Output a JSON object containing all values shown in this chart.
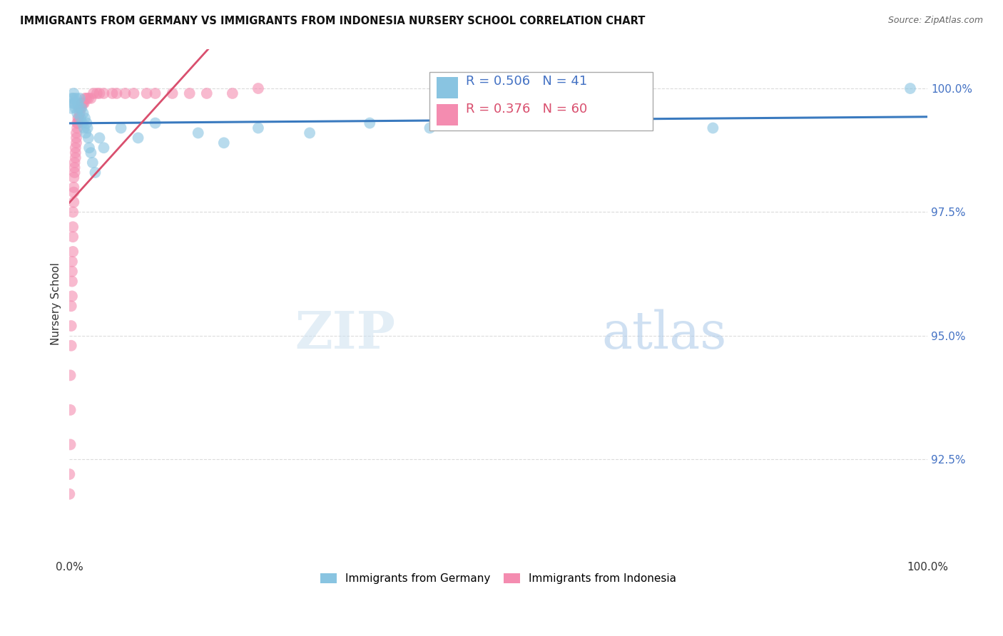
{
  "title": "IMMIGRANTS FROM GERMANY VS IMMIGRANTS FROM INDONESIA NURSERY SCHOOL CORRELATION CHART",
  "source": "Source: ZipAtlas.com",
  "ylabel": "Nursery School",
  "ytick_labels": [
    "100.0%",
    "97.5%",
    "95.0%",
    "92.5%"
  ],
  "ytick_values": [
    1.0,
    0.975,
    0.95,
    0.925
  ],
  "xlim": [
    0.0,
    1.0
  ],
  "ylim": [
    0.905,
    1.008
  ],
  "germany_color": "#89c4e1",
  "indonesia_color": "#f48cb0",
  "germany_R": 0.506,
  "germany_N": 41,
  "indonesia_R": 0.376,
  "indonesia_N": 60,
  "germany_line_color": "#3a7abf",
  "indonesia_line_color": "#d94f6e",
  "legend_label_germany": "Immigrants from Germany",
  "legend_label_indonesia": "Immigrants from Indonesia",
  "germany_x": [
    0.002,
    0.003,
    0.004,
    0.005,
    0.005,
    0.006,
    0.007,
    0.008,
    0.009,
    0.01,
    0.011,
    0.012,
    0.013,
    0.014,
    0.015,
    0.016,
    0.017,
    0.018,
    0.019,
    0.02,
    0.021,
    0.022,
    0.023,
    0.025,
    0.027,
    0.03,
    0.035,
    0.04,
    0.06,
    0.08,
    0.1,
    0.15,
    0.18,
    0.22,
    0.28,
    0.35,
    0.42,
    0.52,
    0.63,
    0.75,
    0.98
  ],
  "germany_y": [
    0.996,
    0.998,
    0.997,
    0.999,
    0.998,
    0.997,
    0.996,
    0.998,
    0.995,
    0.997,
    0.996,
    0.998,
    0.994,
    0.996,
    0.993,
    0.995,
    0.992,
    0.994,
    0.991,
    0.993,
    0.992,
    0.99,
    0.988,
    0.987,
    0.985,
    0.983,
    0.99,
    0.988,
    0.992,
    0.99,
    0.993,
    0.991,
    0.989,
    0.992,
    0.991,
    0.993,
    0.992,
    0.994,
    0.993,
    0.992,
    1.0
  ],
  "indonesia_x": [
    0.0,
    0.0,
    0.001,
    0.001,
    0.001,
    0.002,
    0.002,
    0.002,
    0.003,
    0.003,
    0.003,
    0.003,
    0.004,
    0.004,
    0.004,
    0.004,
    0.005,
    0.005,
    0.005,
    0.005,
    0.006,
    0.006,
    0.006,
    0.007,
    0.007,
    0.007,
    0.008,
    0.008,
    0.008,
    0.009,
    0.009,
    0.01,
    0.01,
    0.011,
    0.012,
    0.012,
    0.013,
    0.014,
    0.015,
    0.016,
    0.017,
    0.018,
    0.02,
    0.022,
    0.025,
    0.028,
    0.032,
    0.035,
    0.04,
    0.05,
    0.055,
    0.065,
    0.075,
    0.09,
    0.1,
    0.12,
    0.14,
    0.16,
    0.19,
    0.22
  ],
  "indonesia_y": [
    0.918,
    0.922,
    0.928,
    0.935,
    0.942,
    0.948,
    0.952,
    0.956,
    0.958,
    0.961,
    0.963,
    0.965,
    0.967,
    0.97,
    0.972,
    0.975,
    0.977,
    0.979,
    0.98,
    0.982,
    0.983,
    0.984,
    0.985,
    0.986,
    0.987,
    0.988,
    0.989,
    0.99,
    0.991,
    0.992,
    0.993,
    0.993,
    0.994,
    0.994,
    0.995,
    0.996,
    0.996,
    0.997,
    0.997,
    0.997,
    0.997,
    0.998,
    0.998,
    0.998,
    0.998,
    0.999,
    0.999,
    0.999,
    0.999,
    0.999,
    0.999,
    0.999,
    0.999,
    0.999,
    0.999,
    0.999,
    0.999,
    0.999,
    0.999,
    1.0
  ],
  "watermark_zip": "ZIP",
  "watermark_atlas": "atlas",
  "grid_color": "#cccccc"
}
